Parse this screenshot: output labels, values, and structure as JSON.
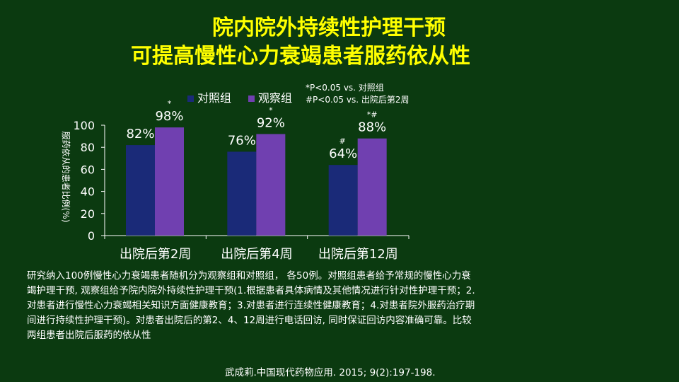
{
  "title": {
    "line1": "院内院外持续性护理干预",
    "line2": "可提高慢性心力衰竭患者服药依从性"
  },
  "notes": {
    "note1": "*P<0.05 vs. 对照组",
    "note2": "#P<0.05 vs. 出院后第2周"
  },
  "chart_data": {
    "type": "bar",
    "categories": [
      "出院后第2周",
      "出院后第4周",
      "出院后第12周"
    ],
    "series": [
      {
        "name": "对照组",
        "color": "#1a2a78",
        "values": [
          82,
          76,
          64
        ],
        "labels": [
          "82%",
          "76%",
          "64%"
        ],
        "marks": [
          "",
          "",
          "#"
        ]
      },
      {
        "name": "观察组",
        "color": "#7040b0",
        "values": [
          98,
          92,
          88
        ],
        "labels": [
          "98%",
          "92%",
          "88%"
        ],
        "marks": [
          "*",
          "*",
          "*#"
        ]
      }
    ],
    "ylabel": "服药依从的患者比例(%)",
    "ylim": [
      0,
      100
    ],
    "yticks": [
      0,
      20,
      40,
      60,
      80,
      100
    ],
    "grid": false,
    "legend_position": "top"
  },
  "description": "研究纳入100例慢性心力衰竭患者随机分为观察组和对照组， 各50例。对照组患者给予常规的慢性心力衰竭护理干预, 观察组给予院内院外持续性护理干预(1.根据患者具体病情及其他情况进行针对性护理干预；2.对患者进行慢性心力衰竭相关知识方面健康教育；3.对患者进行连续性健康教育；4.对患者院外服药治疗期间进行持续性护理干预)。对患者出院后的第2、4、12周进行电话回访, 同时保证回访内容准确可靠。比较两组患者出院后服药的依从性",
  "citation": "武成莉.中国现代药物应用. 2015; 9(2):197-198."
}
